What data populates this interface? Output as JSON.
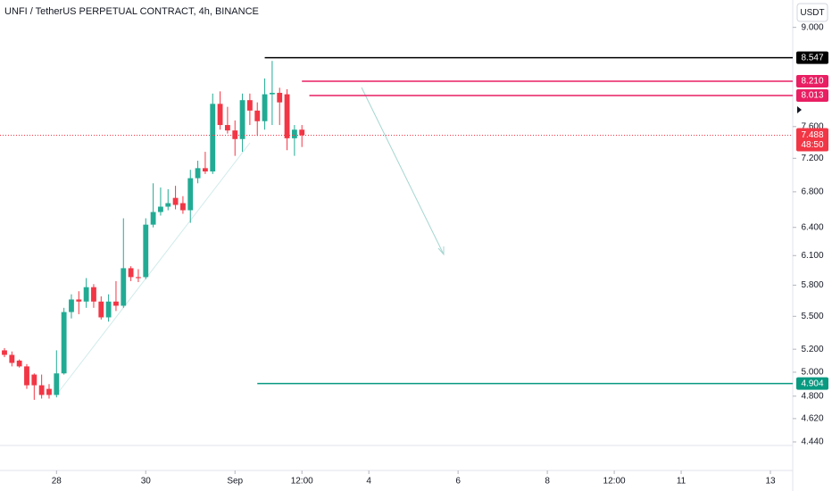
{
  "chart_data": {
    "type": "candlestick",
    "title": "UNFI / TetherUS PERPETUAL CONTRACT, 4h, BINANCE",
    "currency": "USDT",
    "log_scale": true,
    "ylim": [
      4.229,
      9.43
    ],
    "yticks": [
      {
        "value": 9,
        "label": "9.000"
      },
      {
        "value": 7.6,
        "label": "7.600"
      },
      {
        "value": 7.2,
        "label": "7.200"
      },
      {
        "value": 6.8,
        "label": "6.800"
      },
      {
        "value": 6.4,
        "label": "6.400"
      },
      {
        "value": 6.1,
        "label": "6.100"
      },
      {
        "value": 5.8,
        "label": "5.800"
      },
      {
        "value": 5.5,
        "label": "5.500"
      },
      {
        "value": 5.2,
        "label": "5.200"
      },
      {
        "value": 5,
        "label": "5.000"
      },
      {
        "value": 4.8,
        "label": "4.800"
      },
      {
        "value": 4.62,
        "label": "4.620"
      },
      {
        "value": 4.44,
        "label": "4.440"
      }
    ],
    "xlim": [
      -0.6,
      106
    ],
    "xticks": [
      {
        "value": 7,
        "label": "28"
      },
      {
        "value": 19,
        "label": "30"
      },
      {
        "value": 31,
        "label": "Sep"
      },
      {
        "value": 40,
        "label": "12:00"
      },
      {
        "value": 49,
        "label": "4"
      },
      {
        "value": 61,
        "label": "6"
      },
      {
        "value": 73,
        "label": "8"
      },
      {
        "value": 82,
        "label": "12:00"
      },
      {
        "value": 91,
        "label": "11"
      },
      {
        "value": 103,
        "label": "13"
      }
    ],
    "up_color": "#22ab94",
    "down_color": "#f23645",
    "x": [
      0,
      1,
      2,
      3,
      4,
      5,
      6,
      7,
      8,
      9,
      10,
      11,
      12,
      13,
      14,
      15,
      16,
      17,
      18,
      19,
      20,
      21,
      22,
      23,
      24,
      25,
      26,
      27,
      28,
      29,
      30,
      31,
      32,
      33,
      34,
      35,
      36,
      37,
      38,
      39,
      40
    ],
    "open": [
      5.19,
      5.15,
      5.1,
      5.05,
      4.98,
      4.89,
      4.86,
      4.81,
      4.99,
      5.54,
      5.66,
      5.64,
      5.78,
      5.64,
      5.49,
      5.64,
      5.6,
      5.97,
      5.88,
      5.88,
      6.43,
      6.57,
      6.63,
      6.73,
      6.67,
      6.59,
      6.96,
      7.08,
      7.04,
      7.9,
      7.62,
      7.55,
      7.44,
      7.95,
      7.81,
      7.67,
      8.03,
      8.05,
      8.03,
      7.45,
      7.56
    ],
    "high": [
      5.21,
      5.18,
      5.11,
      5.07,
      4.99,
      4.98,
      4.9,
      5.19,
      5.58,
      5.71,
      5.74,
      5.87,
      5.81,
      5.69,
      5.71,
      5.84,
      6.5,
      5.99,
      5.96,
      6.5,
      6.9,
      6.85,
      6.83,
      6.87,
      6.75,
      7.06,
      7.17,
      7.28,
      8.04,
      8.07,
      7.86,
      7.68,
      8.04,
      8.04,
      7.92,
      8.25,
      8.5,
      8.12,
      8.1,
      7.62,
      7.62
    ],
    "low": [
      5.13,
      5.05,
      5.04,
      4.86,
      4.77,
      4.78,
      4.78,
      4.79,
      4.98,
      5.48,
      5.52,
      5.58,
      5.58,
      5.47,
      5.45,
      5.55,
      5.58,
      5.84,
      5.83,
      5.86,
      6.4,
      6.53,
      6.59,
      6.6,
      6.55,
      6.45,
      6.9,
      7.01,
      7.01,
      7.56,
      7.51,
      7.23,
      7.28,
      7.62,
      7.48,
      7.56,
      7.62,
      7.62,
      7.3,
      7.23,
      7.34
    ],
    "close": [
      5.15,
      5.08,
      5.05,
      4.89,
      4.89,
      4.81,
      4.81,
      4.99,
      5.54,
      5.66,
      5.64,
      5.78,
      5.64,
      5.49,
      5.64,
      5.6,
      5.97,
      5.88,
      5.87,
      6.43,
      6.57,
      6.63,
      6.67,
      6.65,
      6.59,
      6.96,
      7.08,
      7.04,
      7.9,
      7.62,
      7.55,
      7.44,
      7.95,
      7.81,
      7.67,
      8.03,
      8.05,
      7.92,
      7.45,
      7.56,
      7.488
    ],
    "last_price": 7.488,
    "last_price_color": "#f23645",
    "countdown": "48:50",
    "levels": {
      "values": [
        8.547,
        8.21,
        8.013,
        4.904
      ],
      "value_labels": [
        "8.547",
        "8.210",
        "8.013",
        "4.904"
      ],
      "colors": [
        "#000000",
        "#e91e63",
        "#e91e63",
        "#089981"
      ],
      "from": [
        35,
        40,
        41,
        34
      ]
    }
  }
}
